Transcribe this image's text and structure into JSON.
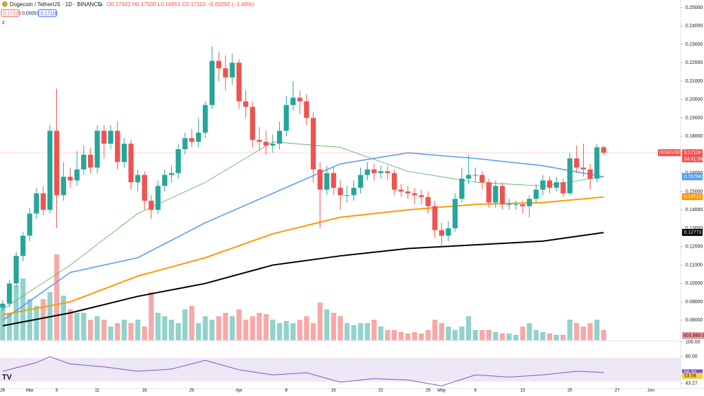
{
  "chart_data": {
    "type": "candlestick",
    "title": "Dogecoin / TetherUS · 1D · BINANCE",
    "ohlc_text": "O0.17402 H0.17500 L0.16951 C0.17110 −0.00292 (−1.68%)",
    "badges": [
      "0.17109",
      "0.00001",
      "0.17110"
    ],
    "collapse": "2",
    "symbol_tag": "DOGEUSDT",
    "countdown": "54:41:06",
    "up_color": "#26a69a",
    "down_color": "#ef5350",
    "xlim": [
      -0.4,
      100.4
    ],
    "xticks": [
      {
        "value": 0,
        "label": "26"
      },
      {
        "value": 4,
        "label": "Mar"
      },
      {
        "value": 8,
        "label": "5"
      },
      {
        "value": 14,
        "label": "11"
      },
      {
        "value": 21,
        "label": "18"
      },
      {
        "value": 28,
        "label": "25"
      },
      {
        "value": 35,
        "label": "Apr"
      },
      {
        "value": 42,
        "label": "8"
      },
      {
        "value": 49,
        "label": "15"
      },
      {
        "value": 56,
        "label": "22"
      },
      {
        "value": 63,
        "label": "29"
      },
      {
        "value": 65,
        "label": "May"
      },
      {
        "value": 70,
        "label": "6"
      },
      {
        "value": 77,
        "label": "13"
      },
      {
        "value": 84,
        "label": "20"
      },
      {
        "value": 91,
        "label": "27"
      },
      {
        "value": 96,
        "label": "Jun"
      }
    ],
    "ylim": [
      0.0691,
      0.2541
    ],
    "yticks": [
      {
        "value": 0.25,
        "label": "0.25000"
      },
      {
        "value": 0.24,
        "label": "0.24000"
      },
      {
        "value": 0.23,
        "label": "0.23000"
      },
      {
        "value": 0.22,
        "label": "0.22000"
      },
      {
        "value": 0.21,
        "label": "0.21000"
      },
      {
        "value": 0.2,
        "label": "0.20000"
      },
      {
        "value": 0.19,
        "label": "0.19000"
      },
      {
        "value": 0.18,
        "label": "0.18000"
      },
      {
        "value": 0.16,
        "label": "0.16000"
      },
      {
        "value": 0.15,
        "label": "0.15000"
      },
      {
        "value": 0.14,
        "label": "0.14000"
      },
      {
        "value": 0.13,
        "label": "0.13000"
      },
      {
        "value": 0.12,
        "label": "0.12000"
      },
      {
        "value": 0.11,
        "label": "0.11000"
      },
      {
        "value": 0.1,
        "label": "0.10000"
      },
      {
        "value": 0.09,
        "label": "0.09000"
      },
      {
        "value": 0.08,
        "label": "0.08000"
      }
    ],
    "open": [
      0.087,
      0.089,
      0.1,
      0.115,
      0.126,
      0.138,
      0.149,
      0.14,
      0.183,
      0.148,
      0.158,
      0.156,
      0.162,
      0.17,
      0.163,
      0.183,
      0.176,
      0.183,
      0.166,
      0.176,
      0.155,
      0.159,
      0.145,
      0.14,
      0.153,
      0.159,
      0.16,
      0.173,
      0.179,
      0.177,
      0.182,
      0.197,
      0.221,
      0.217,
      0.212,
      0.22,
      0.199,
      0.196,
      0.178,
      0.177,
      0.175,
      0.176,
      0.183,
      0.197,
      0.201,
      0.199,
      0.19,
      0.162,
      0.151,
      0.16,
      0.152,
      0.148,
      0.148,
      0.152,
      0.159,
      0.162,
      0.16,
      0.161,
      0.16,
      0.151,
      0.15,
      0.149,
      0.148,
      0.147,
      0.142,
      0.129,
      0.126,
      0.13,
      0.146,
      0.157,
      0.159,
      0.159,
      0.155,
      0.144,
      0.153,
      0.143,
      0.143,
      0.143,
      0.142,
      0.146,
      0.151,
      0.156,
      0.152,
      0.155,
      0.149,
      0.168,
      0.163,
      0.162,
      0.157,
      0.17402
    ],
    "high": [
      0.091,
      0.102,
      0.117,
      0.128,
      0.141,
      0.152,
      0.153,
      0.186,
      0.206,
      0.166,
      0.163,
      0.172,
      0.175,
      0.174,
      0.186,
      0.186,
      0.186,
      0.188,
      0.179,
      0.178,
      0.162,
      0.161,
      0.148,
      0.156,
      0.162,
      0.164,
      0.176,
      0.182,
      0.184,
      0.19,
      0.199,
      0.229,
      0.226,
      0.224,
      0.225,
      0.222,
      0.205,
      0.199,
      0.185,
      0.183,
      0.181,
      0.188,
      0.202,
      0.21,
      0.205,
      0.203,
      0.193,
      0.166,
      0.164,
      0.163,
      0.156,
      0.153,
      0.156,
      0.163,
      0.166,
      0.165,
      0.164,
      0.164,
      0.162,
      0.154,
      0.153,
      0.152,
      0.151,
      0.15,
      0.145,
      0.133,
      0.134,
      0.149,
      0.163,
      0.17,
      0.163,
      0.161,
      0.157,
      0.156,
      0.155,
      0.146,
      0.145,
      0.145,
      0.148,
      0.154,
      0.159,
      0.158,
      0.158,
      0.157,
      0.171,
      0.175,
      0.176,
      0.165,
      0.176,
      0.175
    ],
    "low": [
      0.085,
      0.087,
      0.098,
      0.112,
      0.123,
      0.135,
      0.137,
      0.138,
      0.13,
      0.145,
      0.152,
      0.153,
      0.159,
      0.16,
      0.16,
      0.168,
      0.173,
      0.162,
      0.163,
      0.151,
      0.15,
      0.14,
      0.135,
      0.138,
      0.15,
      0.155,
      0.157,
      0.17,
      0.174,
      0.174,
      0.179,
      0.195,
      0.21,
      0.205,
      0.208,
      0.195,
      0.19,
      0.174,
      0.172,
      0.17,
      0.171,
      0.173,
      0.18,
      0.194,
      0.192,
      0.186,
      0.155,
      0.13,
      0.148,
      0.148,
      0.14,
      0.144,
      0.145,
      0.149,
      0.156,
      0.156,
      0.157,
      0.156,
      0.148,
      0.147,
      0.146,
      0.143,
      0.143,
      0.138,
      0.125,
      0.12,
      0.123,
      0.128,
      0.144,
      0.154,
      0.155,
      0.151,
      0.141,
      0.141,
      0.14,
      0.14,
      0.14,
      0.138,
      0.136,
      0.144,
      0.148,
      0.149,
      0.15,
      0.147,
      0.148,
      0.16,
      0.158,
      0.151,
      0.155,
      0.16951
    ],
    "close": [
      0.089,
      0.1,
      0.115,
      0.126,
      0.138,
      0.149,
      0.14,
      0.183,
      0.148,
      0.158,
      0.156,
      0.162,
      0.17,
      0.163,
      0.183,
      0.176,
      0.183,
      0.166,
      0.176,
      0.155,
      0.159,
      0.145,
      0.14,
      0.153,
      0.159,
      0.16,
      0.173,
      0.179,
      0.177,
      0.182,
      0.197,
      0.221,
      0.217,
      0.212,
      0.22,
      0.199,
      0.196,
      0.178,
      0.177,
      0.175,
      0.176,
      0.183,
      0.197,
      0.201,
      0.199,
      0.19,
      0.162,
      0.151,
      0.16,
      0.152,
      0.148,
      0.148,
      0.152,
      0.159,
      0.162,
      0.16,
      0.161,
      0.16,
      0.151,
      0.15,
      0.149,
      0.148,
      0.147,
      0.142,
      0.129,
      0.126,
      0.13,
      0.146,
      0.157,
      0.159,
      0.159,
      0.155,
      0.144,
      0.153,
      0.143,
      0.143,
      0.143,
      0.142,
      0.146,
      0.151,
      0.156,
      0.152,
      0.155,
      0.149,
      0.168,
      0.163,
      0.162,
      0.157,
      0.174,
      0.1711
    ],
    "vlim": [
      0,
      495
    ],
    "volume": [
      50,
      40,
      80,
      90,
      60,
      50,
      60,
      70,
      125,
      65,
      45,
      40,
      40,
      30,
      35,
      30,
      20,
      25,
      30,
      25,
      30,
      20,
      70,
      40,
      35,
      30,
      25,
      45,
      50,
      25,
      35,
      30,
      35,
      40,
      35,
      45,
      30,
      35,
      40,
      38,
      30,
      25,
      28,
      25,
      30,
      35,
      25,
      55,
      45,
      40,
      35,
      25,
      22,
      25,
      25,
      30,
      20,
      15,
      15,
      12,
      10,
      12,
      10,
      15,
      30,
      25,
      20,
      15,
      20,
      35,
      15,
      15,
      15,
      12,
      10,
      10,
      8,
      20,
      25,
      15,
      12,
      10,
      8,
      8,
      30,
      25,
      20,
      25,
      30,
      15
    ],
    "volume_label": "603,888.6",
    "moving_averages": [
      {
        "color": "#4caf50",
        "width": 0.8,
        "x": [
          0,
          10,
          20,
          30,
          40,
          50,
          60,
          70,
          80,
          89
        ],
        "values": [
          0.086,
          0.11,
          0.138,
          0.155,
          0.177,
          0.174,
          0.161,
          0.155,
          0.153,
          0.158
        ]
      },
      {
        "color": "#5b9cf6",
        "width": 1.6,
        "x": [
          0,
          10,
          20,
          30,
          40,
          50,
          60,
          70,
          80,
          89
        ],
        "values": [
          0.08,
          0.106,
          0.114,
          0.133,
          0.149,
          0.165,
          0.171,
          0.168,
          0.164,
          0.158
        ]
      },
      {
        "color": "#ff9800",
        "width": 2,
        "x": [
          0,
          10,
          20,
          30,
          40,
          50,
          60,
          70,
          80,
          89
        ],
        "values": [
          0.083,
          0.09,
          0.104,
          0.114,
          0.127,
          0.136,
          0.14,
          0.143,
          0.144,
          0.147
        ]
      },
      {
        "color": "#000000",
        "width": 2,
        "x": [
          0,
          10,
          20,
          30,
          40,
          50,
          60,
          70,
          80,
          89
        ],
        "values": [
          0.077,
          0.084,
          0.093,
          0.1,
          0.11,
          0.115,
          0.119,
          0.121,
          0.123,
          0.1277
        ]
      }
    ],
    "price_labels": [
      {
        "value": 0.1711,
        "label": "0.17110",
        "color": "#ef5350"
      },
      {
        "value": 0.15805,
        "label": "0.15805",
        "color": "#1b7f2a"
      },
      {
        "value": 0.15794,
        "label": "0.15794",
        "color": "#5b9cf6"
      },
      {
        "value": 0.14721,
        "label": "0.14721",
        "color": "#ff9800"
      },
      {
        "value": 0.12773,
        "label": "0.12773",
        "color": "#000000"
      }
    ],
    "rsi": {
      "ylim": [
        36.4,
        100.6
      ],
      "color": "#7e57c2",
      "yticks": [
        {
          "value": 100,
          "label": "100.00"
        },
        {
          "value": 80,
          "label": "80.00"
        },
        {
          "value": 53.47,
          "label": "53.47"
        },
        {
          "value": 43.27,
          "label": "43.27"
        }
      ],
      "x": [
        0,
        5,
        7,
        10,
        15,
        20,
        25,
        30,
        35,
        40,
        45,
        50,
        55,
        60,
        65,
        70,
        75,
        80,
        85,
        89
      ],
      "values": [
        60,
        72,
        80,
        70,
        66,
        60,
        63,
        75,
        62,
        55,
        58,
        45,
        50,
        48,
        40,
        55,
        52,
        55,
        60,
        58.3
      ],
      "current": [
        {
          "value": 58.3,
          "label": "58.30",
          "color": "#7e57c2"
        },
        {
          "value": 53.58,
          "label": "53.58",
          "color": "#f5d04a"
        }
      ]
    }
  }
}
